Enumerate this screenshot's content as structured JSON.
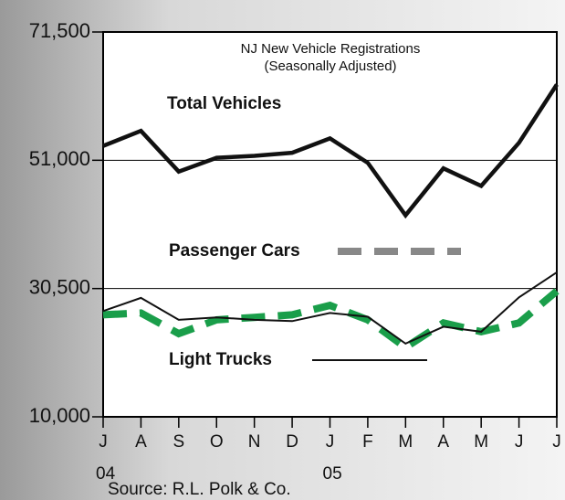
{
  "chart_data": {
    "type": "line",
    "subtitle": [
      "NJ New Vehicle Registrations",
      "(Seasonally Adjusted)"
    ],
    "source": "Source:  R.L. Polk & Co.",
    "categories": [
      "J",
      "A",
      "S",
      "O",
      "N",
      "D",
      "J",
      "F",
      "M",
      "A",
      "M",
      "J",
      "J"
    ],
    "year_labels": [
      "04",
      null,
      null,
      null,
      null,
      null,
      "05",
      null,
      null,
      null,
      null,
      null,
      null
    ],
    "ylim": [
      10000,
      71500
    ],
    "yticks": [
      {
        "value": 10000,
        "label": "10,000"
      },
      {
        "value": 30500,
        "label": "30,500"
      },
      {
        "value": 51000,
        "label": "51,000"
      },
      {
        "value": 71500,
        "label": "71,500"
      }
    ],
    "grid": true,
    "series": [
      {
        "name": "Total Vehicles",
        "color": "#111111",
        "style": "thick",
        "values": [
          53300,
          55700,
          49200,
          51400,
          51700,
          52200,
          54500,
          50600,
          42200,
          49700,
          46900,
          53800,
          63100
        ]
      },
      {
        "name": "Passenger Cars",
        "color": "#1a9e4a",
        "style": "dashed",
        "values": [
          26300,
          26600,
          23300,
          25500,
          25900,
          26300,
          27800,
          25500,
          21100,
          25000,
          23600,
          25000,
          30100
        ]
      },
      {
        "name": "Light Trucks",
        "color": "#111111",
        "style": "thin",
        "values": [
          26900,
          29000,
          25500,
          25900,
          25500,
          25300,
          26600,
          26000,
          21700,
          24400,
          23600,
          29100,
          33100
        ]
      }
    ]
  }
}
